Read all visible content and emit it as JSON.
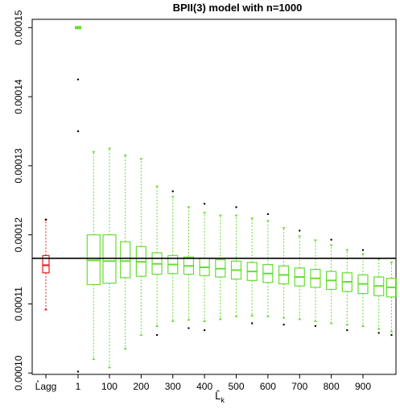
{
  "chart_data": {
    "type": "boxplot",
    "title": "BPII(3) model with n=1000",
    "xlabel": "L̂k",
    "ylabel": "",
    "ylim": [
      9.98e-05,
      0.0001512
    ],
    "y_ticks": [
      {
        "value": 0.0001,
        "label": "0.00010"
      },
      {
        "value": 0.00011,
        "label": "0.00011"
      },
      {
        "value": 0.00012,
        "label": "0.00012"
      },
      {
        "value": 0.00013,
        "label": "0.00013"
      },
      {
        "value": 0.00014,
        "label": "0.00014"
      },
      {
        "value": 0.00015,
        "label": "0.00015"
      }
    ],
    "x_ticks": [
      "L̊agg",
      "1",
      "100",
      "200",
      "300",
      "400",
      "500",
      "600",
      "700",
      "800",
      "900"
    ],
    "x_tick_k": [
      null,
      1,
      100,
      200,
      300,
      400,
      500,
      600,
      700,
      800,
      900
    ],
    "k_max": 1000,
    "reference_line": 0.0001166,
    "reference_box": {
      "label": "L̊agg",
      "color": "#e8151a",
      "q1": 0.0001145,
      "median": 0.0001156,
      "q3": 0.000117,
      "lower_whisker": 0.0001092,
      "upper_whisker": 0.0001222,
      "outliers": [
        0.0001222
      ]
    },
    "series_color": "#66dd33",
    "outlier_color": "#000000",
    "k_boxes": [
      {
        "k": 1,
        "q1": 0.00015,
        "median": 0.00015,
        "q3": 0.00015,
        "lower_whisker": 0.00015,
        "upper_whisker": 0.00015,
        "outliers": [
          0.0001425,
          0.000135,
          0.0001002
        ]
      },
      {
        "k": 50,
        "q1": 0.0001128,
        "median": 0.0001163,
        "q3": 0.00012,
        "lower_whisker": 0.000102,
        "upper_whisker": 0.000132,
        "outliers": []
      },
      {
        "k": 100,
        "q1": 0.000113,
        "median": 0.0001162,
        "q3": 0.00012,
        "lower_whisker": 0.0001008,
        "upper_whisker": 0.0001325,
        "outliers": []
      },
      {
        "k": 150,
        "q1": 0.0001138,
        "median": 0.0001162,
        "q3": 0.000119,
        "lower_whisker": 0.0001035,
        "upper_whisker": 0.0001315,
        "outliers": []
      },
      {
        "k": 200,
        "q1": 0.000114,
        "median": 0.0001161,
        "q3": 0.0001183,
        "lower_whisker": 0.0001055,
        "upper_whisker": 0.000131,
        "outliers": []
      },
      {
        "k": 250,
        "q1": 0.0001143,
        "median": 0.0001158,
        "q3": 0.0001174,
        "lower_whisker": 0.0001068,
        "upper_whisker": 0.000127,
        "outliers": [
          0.0001055
        ]
      },
      {
        "k": 300,
        "q1": 0.0001144,
        "median": 0.0001157,
        "q3": 0.000117,
        "lower_whisker": 0.0001075,
        "upper_whisker": 0.0001255,
        "outliers": [
          0.0001263
        ]
      },
      {
        "k": 350,
        "q1": 0.0001143,
        "median": 0.0001155,
        "q3": 0.0001168,
        "lower_whisker": 0.0001077,
        "upper_whisker": 0.000124,
        "outliers": [
          0.0001065
        ]
      },
      {
        "k": 400,
        "q1": 0.0001141,
        "median": 0.0001153,
        "q3": 0.0001166,
        "lower_whisker": 0.0001075,
        "upper_whisker": 0.0001232,
        "outliers": [
          0.0001245,
          0.0001062
        ]
      },
      {
        "k": 450,
        "q1": 0.0001139,
        "median": 0.0001151,
        "q3": 0.0001164,
        "lower_whisker": 0.0001078,
        "upper_whisker": 0.0001228,
        "outliers": []
      },
      {
        "k": 500,
        "q1": 0.0001136,
        "median": 0.0001149,
        "q3": 0.0001162,
        "lower_whisker": 0.0001082,
        "upper_whisker": 0.0001228,
        "outliers": [
          0.000124
        ]
      },
      {
        "k": 550,
        "q1": 0.0001134,
        "median": 0.0001147,
        "q3": 0.000116,
        "lower_whisker": 0.0001083,
        "upper_whisker": 0.0001224,
        "outliers": [
          0.0001072
        ]
      },
      {
        "k": 600,
        "q1": 0.0001131,
        "median": 0.0001144,
        "q3": 0.0001157,
        "lower_whisker": 0.0001082,
        "upper_whisker": 0.000122,
        "outliers": [
          0.000123
        ]
      },
      {
        "k": 650,
        "q1": 0.0001129,
        "median": 0.0001142,
        "q3": 0.0001155,
        "lower_whisker": 0.000108,
        "upper_whisker": 0.000121,
        "outliers": [
          0.000107
        ]
      },
      {
        "k": 700,
        "q1": 0.0001126,
        "median": 0.0001139,
        "q3": 0.0001152,
        "lower_whisker": 0.0001078,
        "upper_whisker": 0.0001198,
        "outliers": [
          0.0001206
        ]
      },
      {
        "k": 750,
        "q1": 0.0001124,
        "median": 0.0001137,
        "q3": 0.000115,
        "lower_whisker": 0.0001075,
        "upper_whisker": 0.0001192,
        "outliers": [
          0.0001068
        ]
      },
      {
        "k": 800,
        "q1": 0.0001121,
        "median": 0.0001134,
        "q3": 0.0001147,
        "lower_whisker": 0.0001072,
        "upper_whisker": 0.0001185,
        "outliers": [
          0.0001193
        ]
      },
      {
        "k": 850,
        "q1": 0.0001118,
        "median": 0.0001132,
        "q3": 0.0001145,
        "lower_whisker": 0.000107,
        "upper_whisker": 0.0001178,
        "outliers": [
          0.0001062
        ]
      },
      {
        "k": 900,
        "q1": 0.0001115,
        "median": 0.0001129,
        "q3": 0.0001142,
        "lower_whisker": 0.0001068,
        "upper_whisker": 0.0001172,
        "outliers": [
          0.0001178
        ]
      },
      {
        "k": 950,
        "q1": 0.0001112,
        "median": 0.0001126,
        "q3": 0.0001139,
        "lower_whisker": 0.0001064,
        "upper_whisker": 0.0001165,
        "outliers": [
          0.0001058
        ]
      },
      {
        "k": 990,
        "q1": 0.000111,
        "median": 0.0001124,
        "q3": 0.0001137,
        "lower_whisker": 0.000106,
        "upper_whisker": 0.000116,
        "outliers": [
          0.0001055
        ]
      }
    ]
  }
}
